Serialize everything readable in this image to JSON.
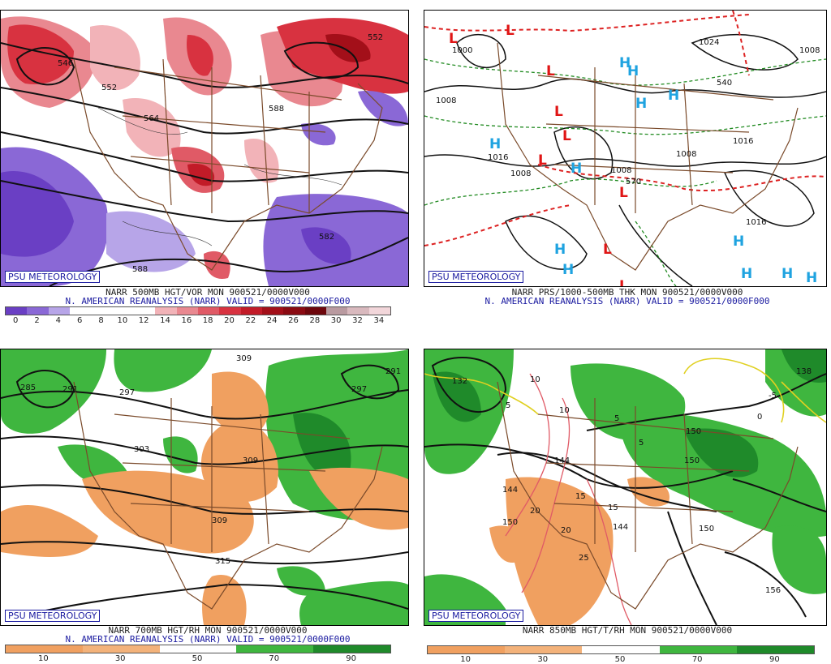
{
  "badge_text": "PSU METEOROLOGY",
  "panels": {
    "top_left": {
      "title": "NARR 500MB HGT/VOR MON 900521/0000V000",
      "subtitle": "N. AMERICAN REANALYSIS (NARR) VALID = 900521/0000F000",
      "scale_labels": [
        "0",
        "2",
        "4",
        "6",
        "8",
        "10",
        "12",
        "14",
        "16",
        "18",
        "20",
        "22",
        "24",
        "26",
        "28",
        "30",
        "32",
        "34"
      ],
      "scale_colors": [
        "#6a3fc4",
        "#8a68d6",
        "#b7a5e8",
        "#ffffff",
        "#ffffff",
        "#ffffff",
        "#ffffff",
        "#f2b3b8",
        "#e98890",
        "#e05a66",
        "#d83240",
        "#c21b28",
        "#a30f19",
        "#8a0a12",
        "#6d060c",
        "#b99aa0",
        "#d9b9be",
        "#f2d6da"
      ],
      "contour_labels": [
        "546",
        "552",
        "564",
        "552",
        "582",
        "588",
        "588"
      ]
    },
    "top_right": {
      "title": "NARR PRS/1000-500MB THK MON 900521/0000V000",
      "subtitle": "N. AMERICAN REANALYSIS (NARR) VALID = 900521/0000F000",
      "contour_labels": [
        "1000",
        "1008",
        "1016",
        "1008",
        "1008",
        "1008",
        "1016",
        "1024",
        "1008",
        "540",
        "570",
        "1016"
      ]
    },
    "bottom_left": {
      "title": "NARR 700MB HGT/RH MON 900521/0000V000",
      "subtitle": "N. AMERICAN REANALYSIS (NARR) VALID = 900521/0000F000",
      "scale_labels": [
        "10",
        "30",
        "50",
        "70",
        "90"
      ],
      "scale_colors": [
        "#f0a060",
        "#f3b27a",
        "#ffffff",
        "#3fb63f",
        "#1f8a2a"
      ],
      "contour_labels": [
        "285",
        "291",
        "297",
        "303",
        "309",
        "309",
        "309",
        "315",
        "291",
        "297"
      ]
    },
    "bottom_right": {
      "title": "NARR 850MB HGT/T/RH MON 900521/0000V000",
      "scale_labels": [
        "10",
        "30",
        "50",
        "70",
        "90"
      ],
      "scale_colors": [
        "#f0a060",
        "#f3b27a",
        "#ffffff",
        "#3fb63f",
        "#1f8a2a"
      ],
      "contour_labels": [
        "132",
        "144",
        "144",
        "150",
        "144",
        "150",
        "150",
        "156",
        "138",
        "150"
      ],
      "temp_labels": [
        "5",
        "10",
        "10",
        "15",
        "15",
        "20",
        "20",
        "25",
        "-5",
        "5",
        "5",
        "0"
      ]
    }
  }
}
